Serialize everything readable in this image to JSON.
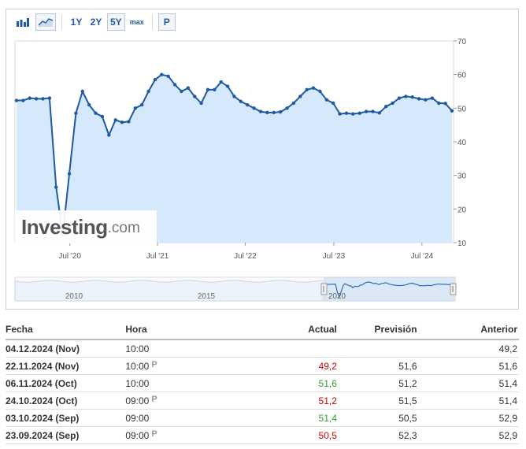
{
  "toolbar": {
    "bar_icon": "bar-chart-icon",
    "line_icon": "area-chart-icon",
    "ranges": [
      "1Y",
      "2Y",
      "5Y",
      "max"
    ],
    "active_range": "5Y",
    "p_label": "P"
  },
  "logo": {
    "text": "Investing",
    "suffix": ".com"
  },
  "chart_data": {
    "type": "area",
    "y_ticks": [
      "70",
      "60",
      "50",
      "40",
      "30",
      "20",
      "10"
    ],
    "ylim": [
      10,
      70
    ],
    "x_tick_labels": [
      "Jul '20",
      "Jul '21",
      "Jul '22",
      "Jul '23",
      "Jul '24"
    ],
    "navigator_labels": [
      "2010",
      "2015",
      "2020"
    ],
    "series": [
      {
        "color": "#1f5aa3",
        "fill": "#d6e8fb",
        "values": [
          52.3,
          52.3,
          53.0,
          52.8,
          52.8,
          53.0,
          26.5,
          12.4,
          30.5,
          48.5,
          55.0,
          51.0,
          48.5,
          47.5,
          42.0,
          46.5,
          45.8,
          46.0,
          50.0,
          51.0,
          55.0,
          58.5,
          60.0,
          59.5,
          57.0,
          55.0,
          56.0,
          53.5,
          51.5,
          55.5,
          55.5,
          57.8,
          56.5,
          53.5,
          52.0,
          51.0,
          50.0,
          49.0,
          48.7,
          48.7,
          48.9,
          50.0,
          51.5,
          53.5,
          55.5,
          56.0,
          55.0,
          52.5,
          51.5,
          48.3,
          48.5,
          48.3,
          48.5,
          49.0,
          49.0,
          48.6,
          50.5,
          51.5,
          53.0,
          53.5,
          53.3,
          52.8,
          52.5,
          53.0,
          51.5,
          51.4,
          49.2
        ]
      }
    ]
  },
  "table": {
    "headers": {
      "fecha": "Fecha",
      "hora": "Hora",
      "actual": "Actual",
      "prevision": "Previsión",
      "anterior": "Anterior"
    },
    "rows": [
      {
        "fecha": "04.12.2024 (Nov)",
        "hora": "10:00",
        "badge": "",
        "actual": "",
        "actual_color": "#333333",
        "prevision": "",
        "anterior": "49,2"
      },
      {
        "fecha": "22.11.2024 (Nov)",
        "hora": "10:00",
        "badge": "P",
        "actual": "49,2",
        "actual_color": "#cc0000",
        "prevision": "51,6",
        "anterior": "51,6"
      },
      {
        "fecha": "06.11.2024 (Oct)",
        "hora": "10:00",
        "badge": "",
        "actual": "51,6",
        "actual_color": "#2d9e2d",
        "prevision": "51,2",
        "anterior": "51,4"
      },
      {
        "fecha": "24.10.2024 (Oct)",
        "hora": "09:00",
        "badge": "P",
        "actual": "51,2",
        "actual_color": "#cc0000",
        "prevision": "51,5",
        "anterior": "51,4"
      },
      {
        "fecha": "03.10.2024 (Sep)",
        "hora": "09:00",
        "badge": "",
        "actual": "51,4",
        "actual_color": "#2d9e2d",
        "prevision": "50,5",
        "anterior": "52,9"
      },
      {
        "fecha": "23.09.2024 (Sep)",
        "hora": "09:00",
        "badge": "P",
        "actual": "50,5",
        "actual_color": "#cc0000",
        "prevision": "52,3",
        "anterior": "52,9"
      }
    ]
  }
}
